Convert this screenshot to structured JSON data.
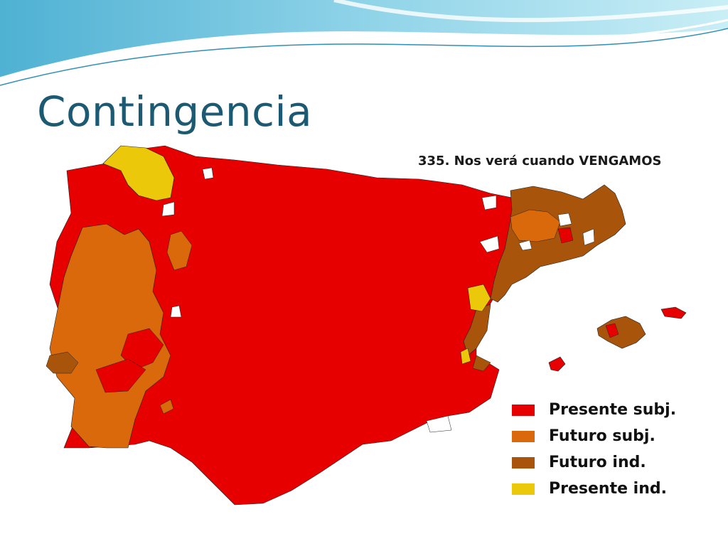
{
  "slide": {
    "title": "Contingencia"
  },
  "map": {
    "caption": "335. Nos verá cuando VENGAMOS",
    "legend": [
      {
        "label": "Presente subj.",
        "color": "#e60000"
      },
      {
        "label": "Futuro subj.",
        "color": "#d9690a"
      },
      {
        "label": "Futuro ind.",
        "color": "#a8540b"
      },
      {
        "label": "Presente ind.",
        "color": "#ebc80a"
      }
    ],
    "no_data_color": "#ffffff"
  }
}
